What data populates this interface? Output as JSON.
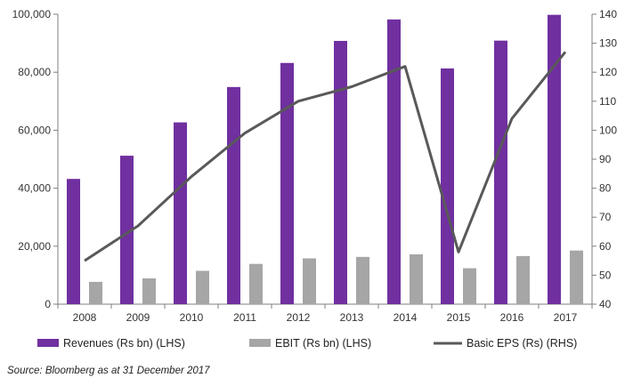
{
  "chart_data": {
    "type": "bar",
    "categories": [
      "2008",
      "2009",
      "2010",
      "2011",
      "2012",
      "2013",
      "2014",
      "2015",
      "2016",
      "2017"
    ],
    "series": [
      {
        "name": "Revenues (Rs bn) (LHS)",
        "kind": "bar",
        "axis": "left",
        "color": "#7030A0",
        "values": [
          43200,
          51200,
          62700,
          74900,
          83200,
          90800,
          98200,
          81300,
          90900,
          99800
        ]
      },
      {
        "name": "EBIT (Rs bn) (LHS)",
        "kind": "bar",
        "axis": "left",
        "color": "#A6A6A6",
        "values": [
          7700,
          8900,
          11500,
          13900,
          15800,
          16300,
          17200,
          12400,
          16600,
          18500
        ]
      },
      {
        "name": "Basic EPS (Rs) (RHS)",
        "kind": "line",
        "axis": "right",
        "color": "#595959",
        "values": [
          55,
          67,
          84,
          99,
          110,
          115,
          122,
          58,
          104,
          127
        ]
      }
    ],
    "left_axis": {
      "min": 0,
      "max": 100000,
      "ticks": [
        "0",
        "20,000",
        "40,000",
        "60,000",
        "80,000",
        "100,000"
      ],
      "tick_values": [
        0,
        20000,
        40000,
        60000,
        80000,
        100000
      ]
    },
    "right_axis": {
      "min": 40,
      "max": 140,
      "ticks": [
        "40",
        "50",
        "60",
        "70",
        "80",
        "90",
        "100",
        "110",
        "120",
        "130",
        "140"
      ],
      "tick_values": [
        40,
        50,
        60,
        70,
        80,
        90,
        100,
        110,
        120,
        130,
        140
      ]
    },
    "legend_position": "bottom",
    "grid": false,
    "source": "Source: Bloomberg as at 31 December 2017"
  }
}
